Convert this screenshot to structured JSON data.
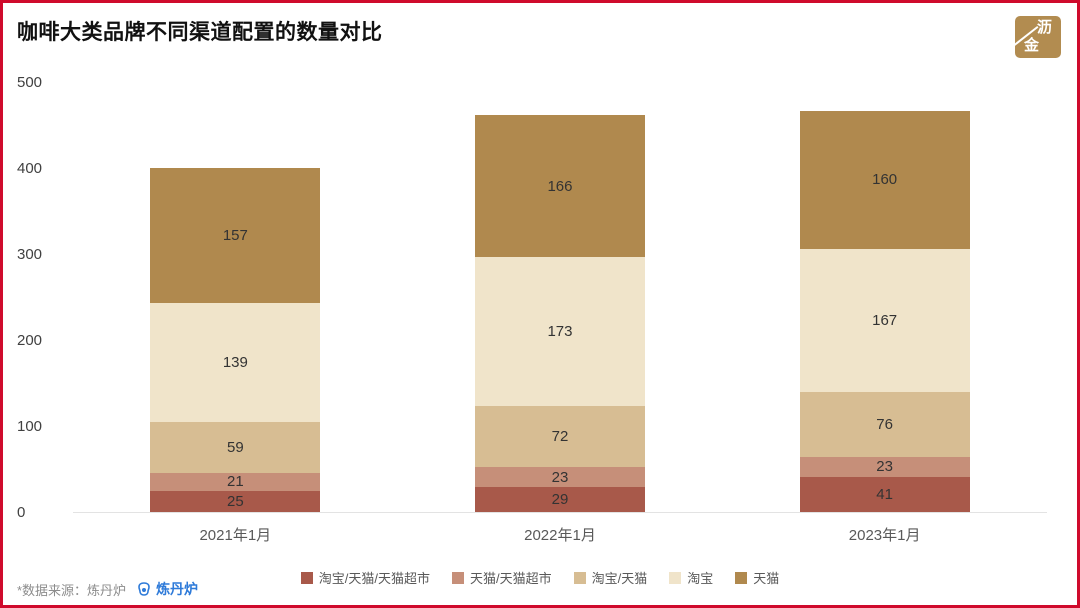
{
  "page": {
    "title": "咖啡大类品牌不同渠道配置的数量对比"
  },
  "badge": {
    "char1": "沥",
    "char2": "金",
    "bg_color": "#b28c50"
  },
  "footer": {
    "source": "*数据来源：炼丹炉",
    "brand": "炼丹炉",
    "brand_color": "#2f7bd9"
  },
  "chart_data": {
    "type": "bar",
    "subtype": "stacked-vertical",
    "categories": [
      "2021年1月",
      "2022年1月",
      "2023年1月"
    ],
    "series": [
      {
        "name": "淘宝/天猫/天猫超市",
        "color": "#a8594a",
        "values": [
          25,
          29,
          41
        ]
      },
      {
        "name": "天猫/天猫超市",
        "color": "#c68f79",
        "values": [
          21,
          23,
          23
        ]
      },
      {
        "name": "淘宝/天猫",
        "color": "#d7bd93",
        "values": [
          59,
          72,
          76
        ]
      },
      {
        "name": "淘宝",
        "color": "#f0e4ca",
        "values": [
          139,
          173,
          167
        ]
      },
      {
        "name": "天猫",
        "color": "#b0894e",
        "values": [
          157,
          166,
          160
        ]
      }
    ],
    "totals": [
      401,
      463,
      467
    ],
    "title": "咖啡大类品牌不同渠道配置的数量对比",
    "xlabel": "",
    "ylabel": "",
    "ylim": [
      0,
      500
    ],
    "yticks": [
      0,
      100,
      200,
      300,
      400,
      500
    ],
    "grid": false,
    "legend_position": "bottom",
    "value_labels": "inside-segment"
  }
}
